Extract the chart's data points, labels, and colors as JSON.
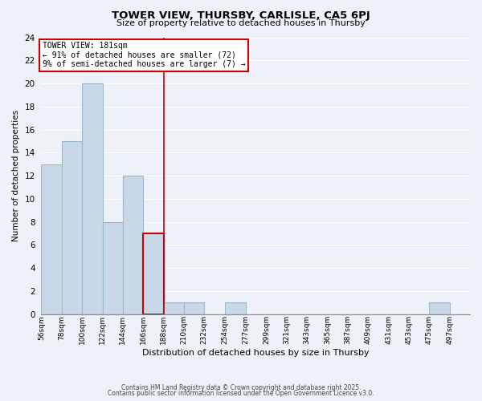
{
  "title": "TOWER VIEW, THURSBY, CARLISLE, CA5 6PJ",
  "subtitle": "Size of property relative to detached houses in Thursby",
  "xlabel": "Distribution of detached houses by size in Thursby",
  "ylabel": "Number of detached properties",
  "bin_labels": [
    "56sqm",
    "78sqm",
    "100sqm",
    "122sqm",
    "144sqm",
    "166sqm",
    "188sqm",
    "210sqm",
    "232sqm",
    "254sqm",
    "277sqm",
    "299sqm",
    "321sqm",
    "343sqm",
    "365sqm",
    "387sqm",
    "409sqm",
    "431sqm",
    "453sqm",
    "475sqm",
    "497sqm"
  ],
  "bin_edges": [
    56,
    78,
    100,
    122,
    144,
    166,
    188,
    210,
    232,
    254,
    277,
    299,
    321,
    343,
    365,
    387,
    409,
    431,
    453,
    475,
    497,
    519
  ],
  "counts": [
    13,
    15,
    20,
    8,
    12,
    7,
    1,
    1,
    0,
    1,
    0,
    0,
    0,
    0,
    0,
    0,
    0,
    0,
    0,
    1,
    0
  ],
  "highlight_bin": 5,
  "bar_color": "#c8d8e8",
  "bar_edge_color": "#9ab8cc",
  "highlight_edge_color": "#cc0000",
  "annotation_text": "TOWER VIEW: 181sqm\n← 91% of detached houses are smaller (72)\n9% of semi-detached houses are larger (7) →",
  "annotation_box_color": "#ffffff",
  "annotation_box_edge_color": "#cc0000",
  "ylim": [
    0,
    24
  ],
  "yticks": [
    0,
    2,
    4,
    6,
    8,
    10,
    12,
    14,
    16,
    18,
    20,
    22,
    24
  ],
  "background_color": "#eef2f8",
  "grid_color": "#ffffff",
  "footer_line1": "Contains HM Land Registry data © Crown copyright and database right 2025.",
  "footer_line2": "Contains public sector information licensed under the Open Government Licence v3.0."
}
